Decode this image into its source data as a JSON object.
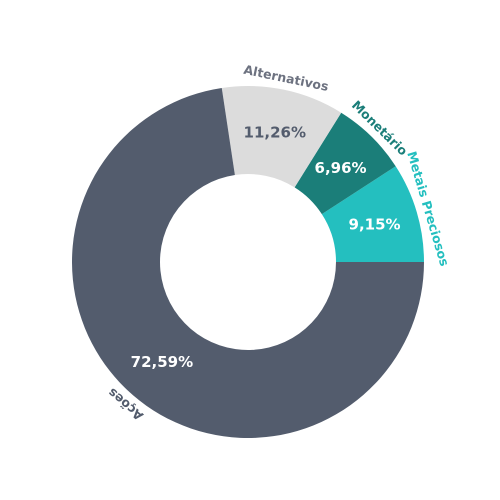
{
  "chart_data": {
    "type": "pie",
    "variant": "donut",
    "slices": [
      {
        "name": "Metais Preciosos",
        "value": 9.15,
        "value_label": "9,15%",
        "color": "#24bfbf",
        "value_text_color": "#ffffff",
        "name_color": "#24bfbf"
      },
      {
        "name": "Monetário",
        "value": 6.96,
        "value_label": "6,96%",
        "color": "#1b7e79",
        "value_text_color": "#ffffff",
        "name_color": "#1b7e79"
      },
      {
        "name": "Alternativos",
        "value": 11.26,
        "value_label": "11,26%",
        "color": "#dcdcdc",
        "value_text_color": "#535c6d",
        "name_color": "#6d7280"
      },
      {
        "name": "Ações",
        "value": 72.59,
        "value_label": "72,59%",
        "color": "#535c6d",
        "value_text_color": "#ffffff",
        "name_color": "#535c6d"
      }
    ],
    "start_direction": "east",
    "order": "counterclockwise",
    "legend": "none"
  }
}
